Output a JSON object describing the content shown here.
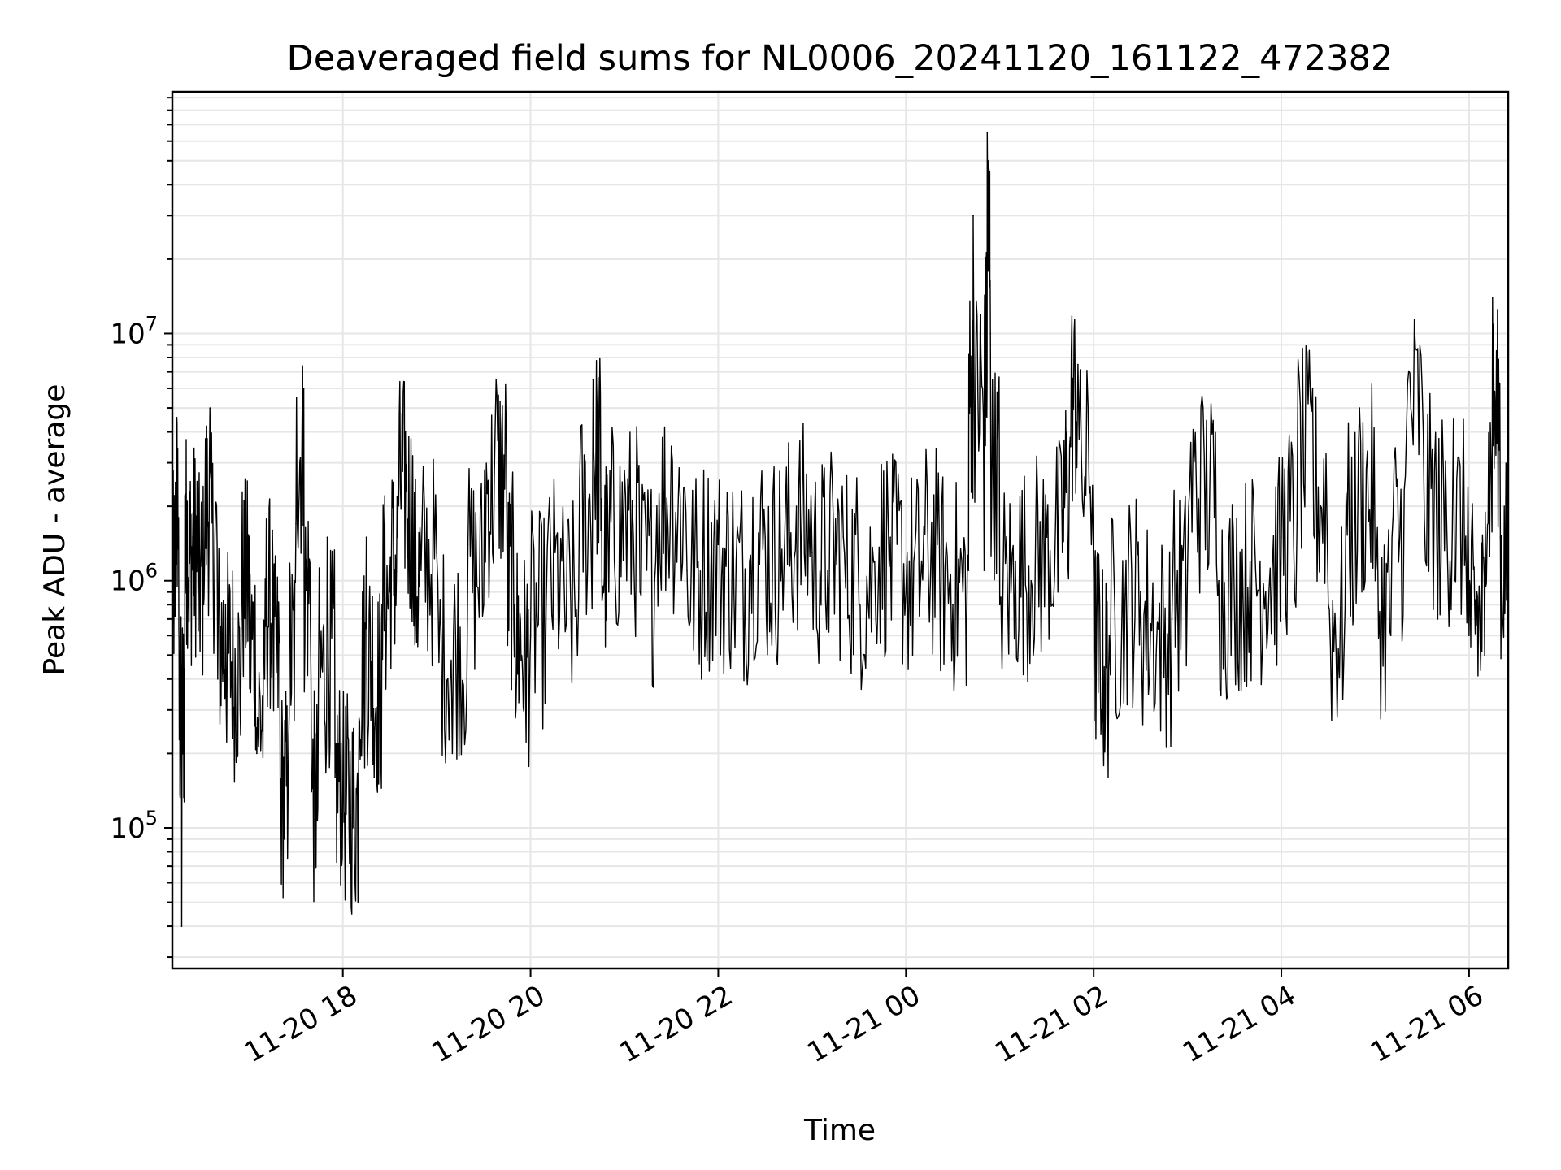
{
  "chart_data": {
    "type": "line",
    "title": "Deaveraged field sums for NL0006_20241120_161122_472382",
    "xlabel": "Time",
    "ylabel": "Peak ADU - average",
    "yscale": "log",
    "ylim": [
      27000,
      95000000
    ],
    "xlim": [
      "2024-11-20 16:11",
      "2024-11-21 06:25"
    ],
    "grid": true,
    "line_color": "#000000",
    "grid_color": "#e6e6e6",
    "x_ticks": [
      "11-20 18",
      "11-20 20",
      "11-20 22",
      "11-21 00",
      "11-21 02",
      "11-21 04",
      "11-21 06"
    ],
    "y_ticks": [
      {
        "base": "10",
        "exp": "5",
        "value": 100000
      },
      {
        "base": "10",
        "exp": "6",
        "value": 1000000
      },
      {
        "base": "10",
        "exp": "7",
        "value": 10000000
      }
    ],
    "series": [
      {
        "x": [
          "2024-11-20 16:11",
          "2024-11-20 16:13",
          "2024-11-20 16:15",
          "2024-11-20 16:17",
          "2024-11-20 16:19",
          "2024-11-20 16:21",
          "2024-11-20 16:24",
          "2024-11-20 16:27",
          "2024-11-20 16:31",
          "2024-11-20 16:35",
          "2024-11-20 16:40",
          "2024-11-20 16:45",
          "2024-11-20 16:50",
          "2024-11-20 16:55",
          "2024-11-20 17:00",
          "2024-11-20 17:05",
          "2024-11-20 17:10",
          "2024-11-20 17:15",
          "2024-11-20 17:20",
          "2024-11-20 17:25",
          "2024-11-20 17:30",
          "2024-11-20 17:35",
          "2024-11-20 17:40",
          "2024-11-20 17:44",
          "2024-11-20 17:50",
          "2024-11-20 17:55",
          "2024-11-20 18:00",
          "2024-11-20 18:05",
          "2024-11-20 18:10",
          "2024-11-20 18:15",
          "2024-11-20 18:20",
          "2024-11-20 18:25",
          "2024-11-20 18:30",
          "2024-11-20 18:35",
          "2024-11-20 18:40",
          "2024-11-20 18:45",
          "2024-11-20 18:50",
          "2024-11-20 19:00",
          "2024-11-20 19:10",
          "2024-11-20 19:20",
          "2024-11-20 19:30",
          "2024-11-20 19:38",
          "2024-11-20 19:45",
          "2024-11-20 19:50",
          "2024-11-20 19:55",
          "2024-11-20 20:00",
          "2024-11-20 20:10",
          "2024-11-20 20:20",
          "2024-11-20 20:30",
          "2024-11-20 20:40",
          "2024-11-20 20:45",
          "2024-11-20 20:50",
          "2024-11-20 21:00",
          "2024-11-20 21:10",
          "2024-11-20 21:20",
          "2024-11-20 21:30",
          "2024-11-20 21:40",
          "2024-11-20 21:50",
          "2024-11-20 22:00",
          "2024-11-20 22:10",
          "2024-11-20 22:20",
          "2024-11-20 22:30",
          "2024-11-20 22:40",
          "2024-11-20 22:50",
          "2024-11-20 23:00",
          "2024-11-20 23:10",
          "2024-11-20 23:20",
          "2024-11-20 23:30",
          "2024-11-20 23:40",
          "2024-11-20 23:50",
          "2024-11-21 00:00",
          "2024-11-21 00:10",
          "2024-11-21 00:20",
          "2024-11-21 00:30",
          "2024-11-21 00:40",
          "2024-11-21 00:43",
          "2024-11-21 00:50",
          "2024-11-21 00:52",
          "2024-11-21 00:54",
          "2024-11-21 01:00",
          "2024-11-21 01:10",
          "2024-11-21 01:20",
          "2024-11-21 01:30",
          "2024-11-21 01:40",
          "2024-11-21 01:45",
          "2024-11-21 01:50",
          "2024-11-21 02:00",
          "2024-11-21 02:05",
          "2024-11-21 02:10",
          "2024-11-21 02:20",
          "2024-11-21 02:30",
          "2024-11-21 02:40",
          "2024-11-21 02:50",
          "2024-11-21 03:00",
          "2024-11-21 03:10",
          "2024-11-21 03:20",
          "2024-11-21 03:30",
          "2024-11-21 03:40",
          "2024-11-21 03:50",
          "2024-11-21 04:00",
          "2024-11-21 04:10",
          "2024-11-21 04:20",
          "2024-11-21 04:30",
          "2024-11-21 04:40",
          "2024-11-21 04:50",
          "2024-11-21 05:00",
          "2024-11-21 05:10",
          "2024-11-21 05:20",
          "2024-11-21 05:30",
          "2024-11-21 05:40",
          "2024-11-21 05:50",
          "2024-11-21 06:00",
          "2024-11-21 06:05",
          "2024-11-21 06:10",
          "2024-11-21 06:15",
          "2024-11-21 06:20",
          "2024-11-21 06:25"
        ],
        "y": [
          400000,
          2500000,
          1800000,
          40000,
          2200000,
          1000000,
          1500000,
          1200000,
          800000,
          5000000,
          400000,
          800000,
          300000,
          600000,
          1500000,
          200000,
          400000,
          1600000,
          130000,
          150000,
          1700000,
          6000000,
          140000,
          120000,
          1500000,
          160000,
          150000,
          110000,
          130000,
          1500000,
          160000,
          800000,
          900000,
          1500000,
          4000000,
          900000,
          1100000,
          1300000,
          200000,
          1400000,
          800000,
          6500000,
          1200000,
          800000,
          400000,
          600000,
          800000,
          1200000,
          500000,
          6500000,
          1600000,
          900000,
          2800000,
          900000,
          1200000,
          3500000,
          1100000,
          1000000,
          1400000,
          900000,
          1200000,
          1500000,
          1000000,
          2000000,
          1300000,
          1100000,
          1500000,
          800000,
          1200000,
          1500000,
          900000,
          1200000,
          1400000,
          800000,
          1100000,
          30000000,
          1100000,
          65000000,
          10000000,
          800000,
          1200000,
          1000000,
          1500000,
          1300000,
          3800000,
          7500000,
          1000000,
          300000,
          600000,
          800000,
          900000,
          500000,
          700000,
          1100000,
          5000000,
          1000000,
          800000,
          1200000,
          900000,
          1500000,
          1700000,
          6000000,
          800000,
          500000,
          5000000,
          1000000,
          600000,
          4000000,
          6000000,
          700000,
          4500000,
          600000,
          900000,
          500000,
          14000000,
          1500000,
          900000
        ]
      }
    ]
  }
}
